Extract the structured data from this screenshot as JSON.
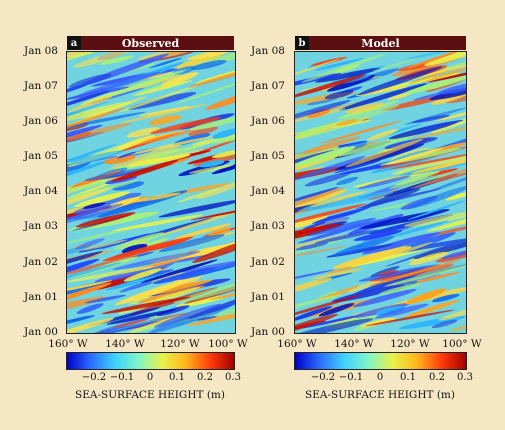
{
  "chart_data": [
    {
      "type": "heatmap",
      "panel_letter": "a",
      "title": "Observed",
      "y_tick_labels": [
        "Jan 08",
        "Jan 07",
        "Jan 06",
        "Jan 05",
        "Jan 04",
        "Jan 03",
        "Jan 02",
        "Jan 01",
        "Jan 00"
      ],
      "x_tick_labels": [
        "160° W",
        "140° W",
        "120° W",
        "100° W"
      ],
      "x_range_deg_w": [
        160,
        100
      ],
      "y_range_years": [
        2000,
        2008
      ],
      "colorbar": {
        "tick_labels": [
          "−0.2",
          "−0.1",
          "0",
          "0.1",
          "0.2",
          "0.3"
        ],
        "range": [
          -0.3,
          0.3
        ],
        "label": "SEA-SURFACE HEIGHT (m)"
      },
      "colormap": [
        "#0000c8",
        "#2a6cff",
        "#3fd0ff",
        "#7ff5c8",
        "#e8f24a",
        "#ffb41c",
        "#ff3c0a",
        "#a50000"
      ]
    },
    {
      "type": "heatmap",
      "panel_letter": "b",
      "title": "Model",
      "y_tick_labels": [
        "Jan 08",
        "Jan 07",
        "Jan 06",
        "Jan 05",
        "Jan 04",
        "Jan 03",
        "Jan 02",
        "Jan 01",
        "Jan 00"
      ],
      "x_tick_labels": [
        "160° W",
        "140° W",
        "120° W",
        "100° W"
      ],
      "x_range_deg_w": [
        160,
        100
      ],
      "y_range_years": [
        2000,
        2008
      ],
      "colorbar": {
        "tick_labels": [
          "−0.2",
          "−0.1",
          "0",
          "0.1",
          "0.2",
          "0.3"
        ],
        "range": [
          -0.3,
          0.3
        ],
        "label": "SEA-SURFACE HEIGHT (m)"
      },
      "colormap": [
        "#0000c8",
        "#2a6cff",
        "#3fd0ff",
        "#7ff5c8",
        "#e8f24a",
        "#ffb41c",
        "#ff3c0a",
        "#a50000"
      ]
    }
  ],
  "colors": {
    "header_bg": "#5c0f10",
    "page_bg": "#f5e6c4"
  }
}
